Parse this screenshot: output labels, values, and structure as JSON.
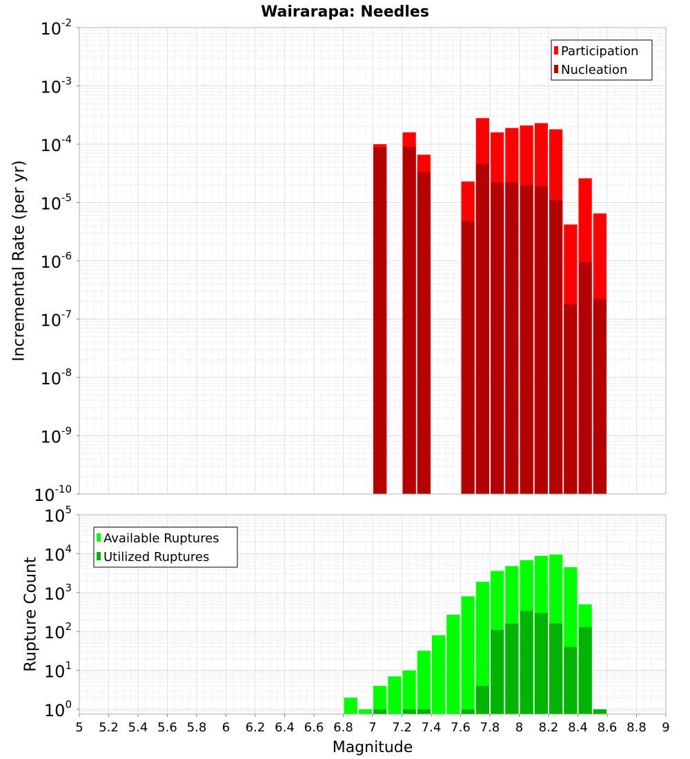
{
  "title": "Wairarapa: Needles",
  "chart_data": [
    {
      "type": "bar",
      "title": "Wairarapa: Needles",
      "xlabel": "",
      "ylabel": "Incremental Rate (per yr)",
      "yscale": "log",
      "ylim": [
        1e-10,
        0.01
      ],
      "xlim": [
        5,
        9
      ],
      "y_tick_exponents": [
        -10,
        -9,
        -8,
        -7,
        -6,
        -5,
        -4,
        -3,
        -2
      ],
      "legend": {
        "position": "top-right",
        "entries": [
          "Participation",
          "Nucleation"
        ]
      },
      "colors": {
        "Participation": "#ff0000",
        "Nucleation": "#b30000"
      },
      "series": [
        {
          "name": "Participation",
          "x": [
            7.05,
            7.25,
            7.35,
            7.65,
            7.75,
            7.85,
            7.95,
            8.05,
            8.15,
            8.25,
            8.35,
            8.45,
            8.55
          ],
          "values": [
            0.0001,
            0.00016,
            6.6e-05,
            2.3e-05,
            0.00028,
            0.00016,
            0.00019,
            0.00021,
            0.00023,
            0.00018,
            4.2e-06,
            2.6e-05,
            6.5e-06
          ]
        },
        {
          "name": "Nucleation",
          "x": [
            7.05,
            7.25,
            7.35,
            7.65,
            7.75,
            7.85,
            7.95,
            8.05,
            8.15,
            8.25,
            8.35,
            8.45,
            8.55
          ],
          "values": [
            8.8e-05,
            9e-05,
            3.3e-05,
            4.8e-06,
            4.6e-05,
            2.2e-05,
            2.2e-05,
            2e-05,
            1.9e-05,
            1.1e-05,
            1.8e-07,
            9.5e-07,
            2.2e-07
          ]
        }
      ],
      "grid": true
    },
    {
      "type": "bar",
      "xlabel": "Magnitude",
      "ylabel": "Rupture Count",
      "yscale": "log",
      "ylim": [
        0.75,
        100000.0
      ],
      "xlim": [
        5,
        9
      ],
      "y_tick_exponents": [
        0,
        1,
        2,
        3,
        4,
        5
      ],
      "x_ticks": [
        "5",
        "5.2",
        "5.4",
        "5.6",
        "5.8",
        "6",
        "6.2",
        "6.4",
        "6.6",
        "6.8",
        "7",
        "7.2",
        "7.4",
        "7.6",
        "7.8",
        "8",
        "8.2",
        "8.4",
        "8.6",
        "8.8",
        "9"
      ],
      "legend": {
        "position": "top-left",
        "entries": [
          "Available Ruptures",
          "Utilized Ruptures"
        ]
      },
      "colors": {
        "Available Ruptures": "#00ff00",
        "Utilized Ruptures": "#00b300"
      },
      "series": [
        {
          "name": "Available Ruptures",
          "x": [
            6.85,
            6.95,
            7.05,
            7.15,
            7.25,
            7.35,
            7.45,
            7.55,
            7.65,
            7.75,
            7.85,
            7.95,
            8.05,
            8.15,
            8.25,
            8.35,
            8.45,
            8.55
          ],
          "values": [
            2,
            1,
            4,
            7,
            10,
            32,
            80,
            270,
            800,
            1900,
            3600,
            4800,
            6800,
            8800,
            9500,
            4500,
            500,
            1
          ]
        },
        {
          "name": "Utilized Ruptures",
          "x": [
            7.05,
            7.25,
            7.35,
            7.65,
            7.75,
            7.85,
            7.95,
            8.05,
            8.15,
            8.25,
            8.35,
            8.45,
            8.55
          ],
          "values": [
            1,
            1,
            1,
            1,
            4,
            110,
            160,
            340,
            300,
            160,
            40,
            130,
            1
          ]
        }
      ],
      "grid": true
    }
  ]
}
